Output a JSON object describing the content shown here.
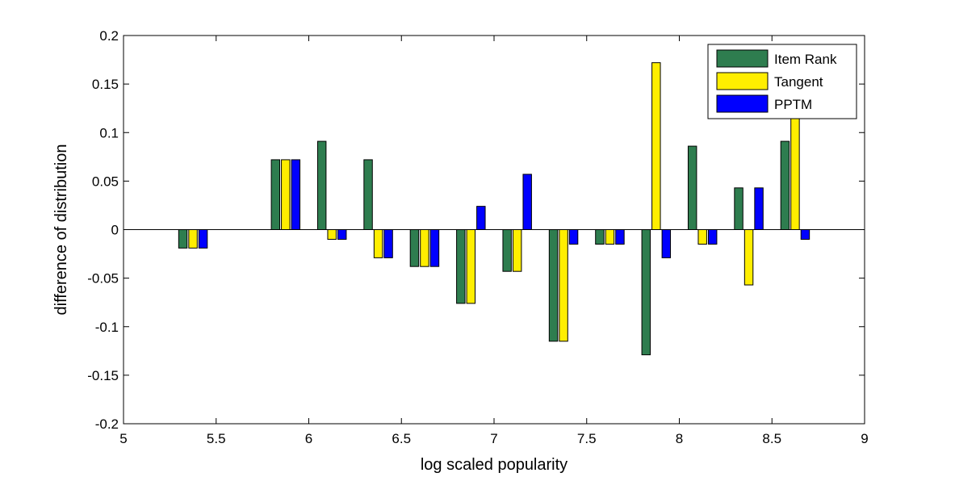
{
  "chart_data": {
    "type": "bar",
    "xlabel": "log scaled popularity",
    "ylabel": "difference of distribution",
    "xlim": [
      5,
      9
    ],
    "ylim": [
      -0.2,
      0.2
    ],
    "xticks": [
      5,
      5.5,
      6,
      6.5,
      7,
      7.5,
      8,
      8.5,
      9
    ],
    "xtick_labels": [
      "5",
      "5.5",
      "6",
      "6.5",
      "7",
      "7.5",
      "8",
      "8.5",
      "9"
    ],
    "yticks": [
      -0.2,
      -0.15,
      -0.1,
      -0.05,
      0,
      0.05,
      0.1,
      0.15,
      0.2
    ],
    "ytick_labels": [
      "-0.2",
      "-0.15",
      "-0.1",
      "-0.05",
      "0",
      "0.05",
      "0.1",
      "0.15",
      "0.2"
    ],
    "legend_position": "top-right",
    "grid": false,
    "x": [
      5.375,
      5.875,
      6.125,
      6.375,
      6.625,
      6.875,
      7.125,
      7.375,
      7.625,
      7.875,
      8.125,
      8.375,
      8.625
    ],
    "series": [
      {
        "name": "Item Rank",
        "color": "#2e7d4f",
        "values": [
          -0.019,
          0.072,
          0.091,
          0.072,
          -0.038,
          -0.076,
          -0.043,
          -0.115,
          -0.015,
          -0.129,
          0.086,
          0.043,
          0.091
        ]
      },
      {
        "name": "Tangent",
        "color": "#ffee00",
        "values": [
          -0.019,
          0.072,
          -0.01,
          -0.029,
          -0.038,
          -0.076,
          -0.043,
          -0.115,
          -0.015,
          0.172,
          -0.015,
          -0.057,
          0.119
        ]
      },
      {
        "name": "PPTM",
        "color": "#0000ff",
        "values": [
          -0.019,
          0.072,
          -0.01,
          -0.029,
          -0.038,
          0.024,
          0.057,
          -0.015,
          -0.015,
          -0.029,
          -0.015,
          0.043,
          -0.01
        ]
      }
    ]
  }
}
